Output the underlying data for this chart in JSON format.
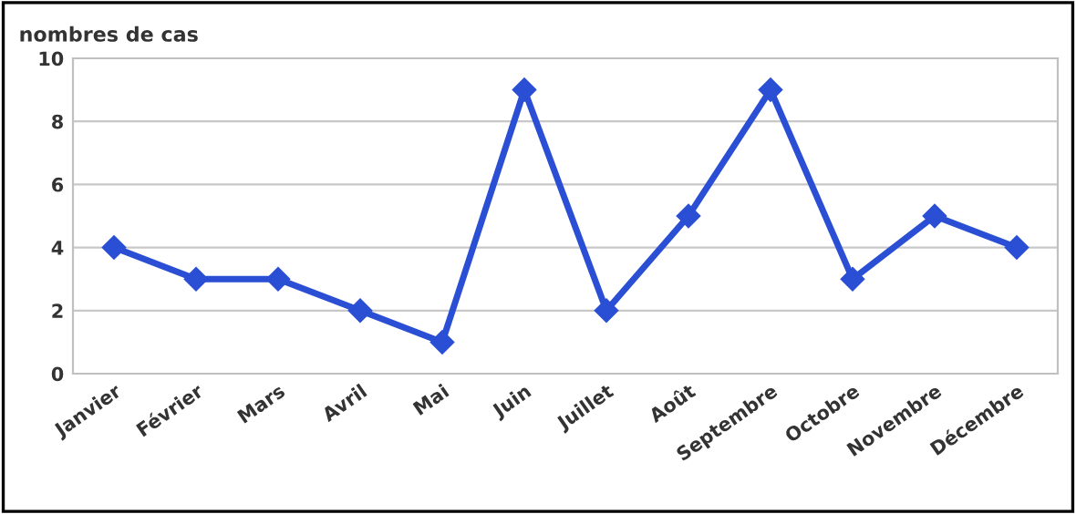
{
  "chart_data": {
    "type": "line",
    "ylabel": "nombres de cas",
    "categories": [
      "Janvier",
      "Février",
      "Mars",
      "Avril",
      "Mai",
      "Juin",
      "Juillet",
      "Août",
      "Septembre",
      "Octobre",
      "Novembre",
      "Décembre"
    ],
    "series": [
      {
        "color": "#2a4fd4",
        "values": [
          4,
          3,
          3,
          2,
          1,
          9,
          2,
          5,
          9,
          3,
          5,
          4
        ]
      }
    ],
    "ylim": [
      0,
      10
    ],
    "yticks": [
      0,
      2,
      4,
      6,
      8,
      10
    ],
    "grid": "y",
    "marker": "diamond",
    "line_style": "solid",
    "legend": false
  }
}
